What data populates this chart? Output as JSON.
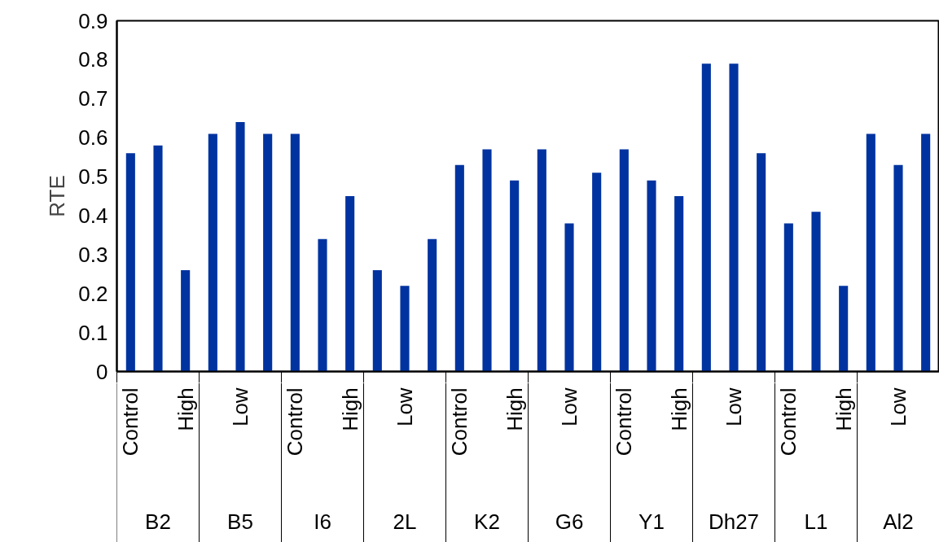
{
  "chart_data": {
    "type": "bar",
    "ylabel": "RTE",
    "categories": [
      "Control",
      null,
      "High",
      null,
      "Low",
      null,
      "Control",
      null,
      "High",
      null,
      "Low",
      null,
      "Control",
      null,
      "High",
      null,
      "Low",
      null,
      "Control",
      null,
      "High",
      null,
      "Low",
      null,
      "Control",
      null,
      "High",
      null,
      "Low",
      null
    ],
    "values": [
      0.56,
      0.58,
      0.26,
      0.61,
      0.64,
      0.61,
      0.61,
      0.34,
      0.45,
      0.26,
      0.22,
      0.34,
      0.53,
      0.57,
      0.49,
      0.57,
      0.38,
      0.51,
      0.57,
      0.49,
      0.45,
      0.79,
      0.79,
      0.56,
      0.38,
      0.41,
      0.22,
      0.61,
      0.53,
      0.61
    ],
    "color": "#0033a0",
    "ylim": [
      0,
      0.9
    ],
    "yticks": [
      0,
      0.1,
      0.2,
      0.3,
      0.4,
      0.5,
      0.6,
      0.7,
      0.8,
      0.9
    ],
    "grid": false,
    "annotations": [
      "B2",
      "B5",
      "I6",
      "2L",
      "K2",
      "G6",
      "Y1",
      "Dh27",
      "L1",
      "Al2"
    ]
  }
}
